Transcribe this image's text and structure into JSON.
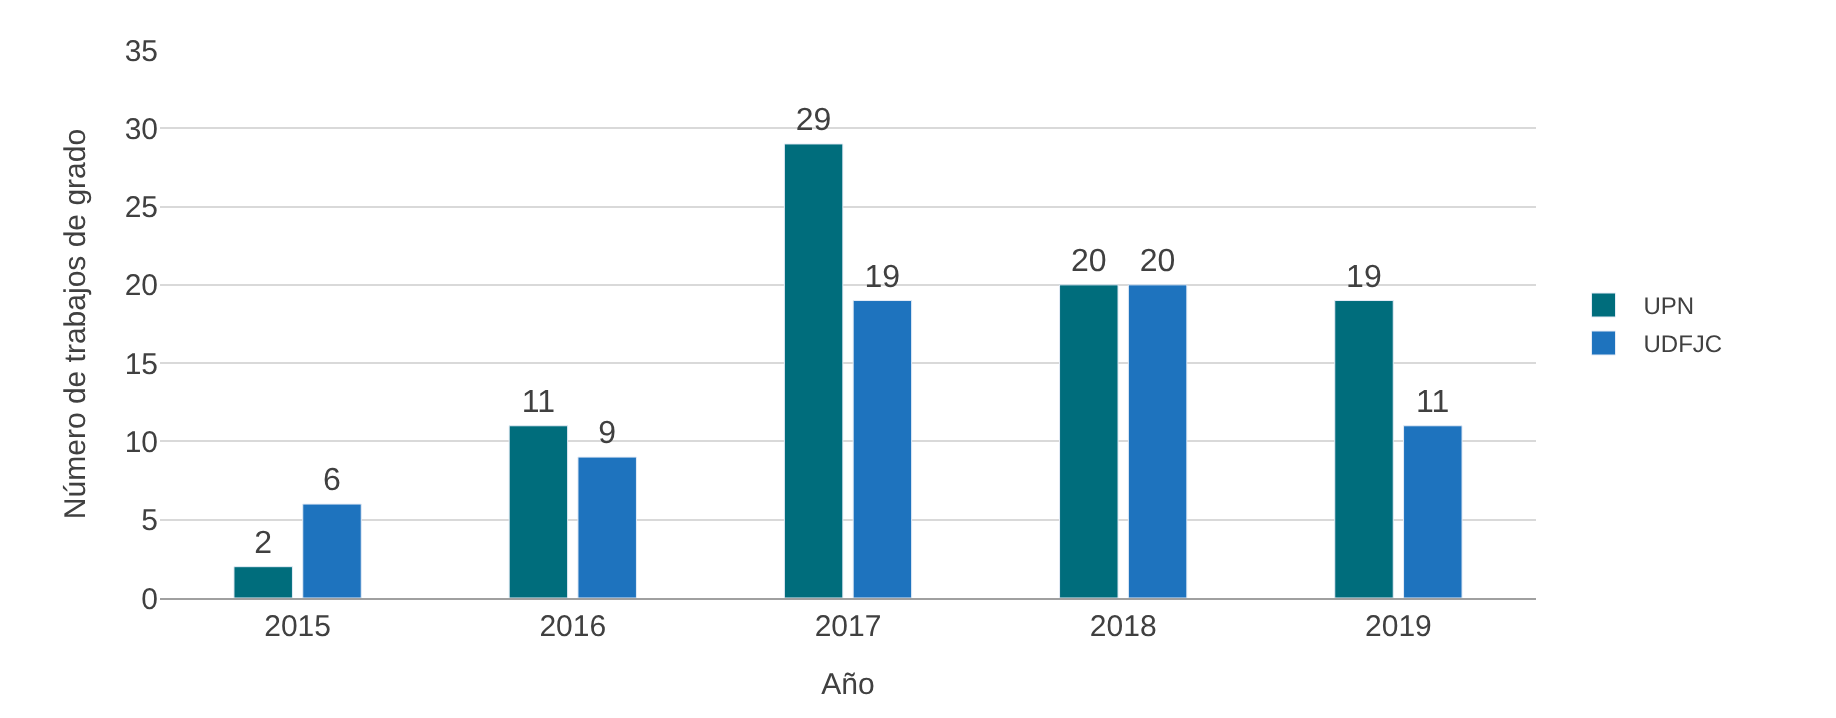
{
  "chart_data": {
    "type": "bar",
    "xlabel": "Año",
    "ylabel": "Número de trabajos de grado",
    "categories": [
      "2015",
      "2016",
      "2017",
      "2018",
      "2019"
    ],
    "series": [
      {
        "name": "UPN",
        "color": "#006d7c",
        "values": [
          2,
          11,
          29,
          20,
          19
        ]
      },
      {
        "name": "UDFJC",
        "color": "#1e73be",
        "values": [
          6,
          9,
          19,
          20,
          11
        ]
      }
    ],
    "ylim": [
      0,
      35
    ],
    "yticks": [
      0,
      5,
      10,
      15,
      20,
      25,
      30,
      35
    ],
    "grid": "y",
    "legend": "right",
    "data_labels": true
  }
}
